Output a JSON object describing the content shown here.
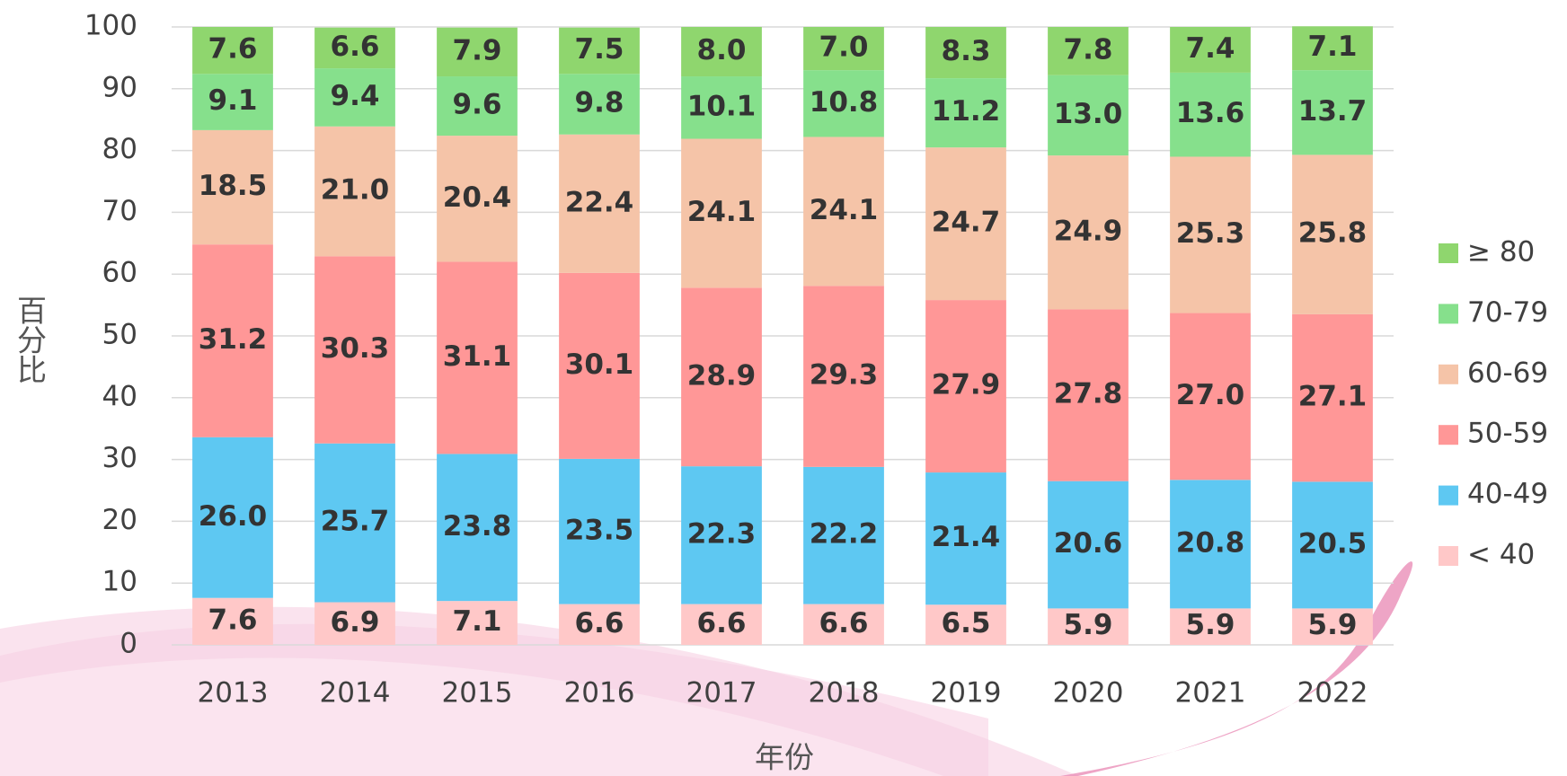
{
  "chart_data": {
    "type": "stacked_bar",
    "categories": [
      "2013",
      "2014",
      "2015",
      "2016",
      "2017",
      "2018",
      "2019",
      "2020",
      "2021",
      "2022"
    ],
    "x_label": "年份",
    "y_label": "百分比",
    "ylim": [
      0,
      100
    ],
    "yticks": [
      0,
      10,
      20,
      30,
      40,
      50,
      60,
      70,
      80,
      90,
      100
    ],
    "grid": true,
    "legend": "right",
    "series": [
      {
        "name": "< 40",
        "color": "#ffc8c8",
        "values": [
          7.6,
          6.9,
          7.1,
          6.6,
          6.6,
          6.6,
          6.5,
          5.9,
          5.9,
          5.9
        ],
        "value_labels": [
          "7.6",
          "6.9",
          "7.1",
          "6.6",
          "6.6",
          "6.6",
          "6.5",
          "5.9",
          "5.9",
          "5.9"
        ]
      },
      {
        "name": "40-49",
        "color": "#5ec8f2",
        "values": [
          26,
          25.7,
          23.8,
          23.5,
          22.3,
          22.2,
          21.4,
          20.6,
          20.8,
          20.5
        ],
        "value_labels": [
          "26.0",
          "25.7",
          "23.8",
          "23.5",
          "22.3",
          "22.2",
          "21.4",
          "20.6",
          "20.8",
          "20.5"
        ]
      },
      {
        "name": "50-59",
        "color": "#ff9797",
        "values": [
          31.2,
          30.3,
          31.1,
          30.1,
          28.9,
          29.3,
          27.9,
          27.8,
          27,
          27.1
        ],
        "value_labels": [
          "31.2",
          "30.3",
          "31.1",
          "30.1",
          "28.9",
          "29.3",
          "27.9",
          "27.8",
          "27.0",
          "27.1"
        ]
      },
      {
        "name": "60-69",
        "color": "#f5c4a8",
        "values": [
          18.5,
          21,
          20.4,
          22.4,
          24.1,
          24.1,
          24.7,
          24.9,
          25.3,
          25.8
        ],
        "value_labels": [
          "18.5",
          "21.0",
          "20.4",
          "22.4",
          "24.1",
          "24.1",
          "24.7",
          "24.9",
          "25.3",
          "25.8"
        ]
      },
      {
        "name": "70-79",
        "color": "#86e08c",
        "values": [
          9.1,
          9.4,
          9.6,
          9.8,
          10.1,
          10.8,
          11.2,
          13,
          13.6,
          13.7
        ],
        "value_labels": [
          "9.1",
          "9.4",
          "9.6",
          "9.8",
          "10.1",
          "10.8",
          "11.2",
          "13.0",
          "13.6",
          "13.7"
        ]
      },
      {
        "name": "≥ 80",
        "color": "#8fd66e",
        "values": [
          7.6,
          6.6,
          7.9,
          7.5,
          8,
          7,
          8.3,
          7.8,
          7.4,
          7.1
        ],
        "value_labels": [
          "7.6",
          "6.6",
          "7.9",
          "7.5",
          "8.0",
          "7.0",
          "8.3",
          "7.8",
          "7.4",
          "7.1"
        ]
      }
    ]
  }
}
